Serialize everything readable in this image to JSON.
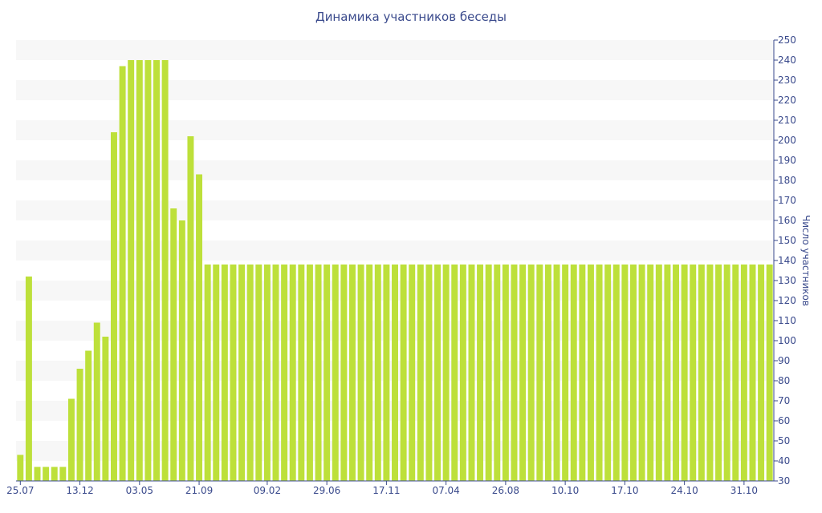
{
  "chart_data": {
    "type": "bar",
    "title": "Динамика участников беседы",
    "xlabel": "",
    "ylabel": "Число участников",
    "ylim": [
      30,
      250
    ],
    "yticks": [
      30,
      40,
      50,
      60,
      70,
      80,
      90,
      100,
      110,
      120,
      130,
      140,
      150,
      160,
      170,
      180,
      190,
      200,
      210,
      220,
      230,
      240,
      250
    ],
    "xtick_labels": [
      {
        "label": "25.07",
        "index": 0
      },
      {
        "label": "13.12",
        "index": 7
      },
      {
        "label": "03.05",
        "index": 14
      },
      {
        "label": "21.09",
        "index": 21
      },
      {
        "label": "09.02",
        "index": 29
      },
      {
        "label": "29.06",
        "index": 36
      },
      {
        "label": "17.11",
        "index": 43
      },
      {
        "label": "07.04",
        "index": 50
      },
      {
        "label": "26.08",
        "index": 57
      },
      {
        "label": "10.10",
        "index": 64
      },
      {
        "label": "17.10",
        "index": 71
      },
      {
        "label": "24.10",
        "index": 78
      },
      {
        "label": "31.10",
        "index": 85
      }
    ],
    "values": [
      43,
      132,
      37,
      37,
      37,
      37,
      71,
      86,
      95,
      109,
      102,
      204,
      237,
      240,
      240,
      240,
      240,
      240,
      166,
      160,
      202,
      183,
      138,
      138,
      138,
      138,
      138,
      138,
      138,
      138,
      138,
      138,
      138,
      138,
      138,
      138,
      138,
      138,
      138,
      138,
      138,
      138,
      138,
      138,
      138,
      138,
      138,
      138,
      138,
      138,
      138,
      138,
      138,
      138,
      138,
      138,
      138,
      138,
      138,
      138,
      138,
      138,
      138,
      138,
      138,
      138,
      138,
      138,
      138,
      138,
      138,
      138,
      138,
      138,
      138,
      138,
      138,
      138,
      138,
      138,
      138,
      138,
      138,
      138,
      138,
      138,
      138,
      138,
      138
    ],
    "bar_color": "#bde03a",
    "band_color": "#f7f7f7",
    "text_color": "#3a4a8c",
    "grid": "horizontal bands",
    "y_axis_position": "right",
    "legend": "none"
  }
}
